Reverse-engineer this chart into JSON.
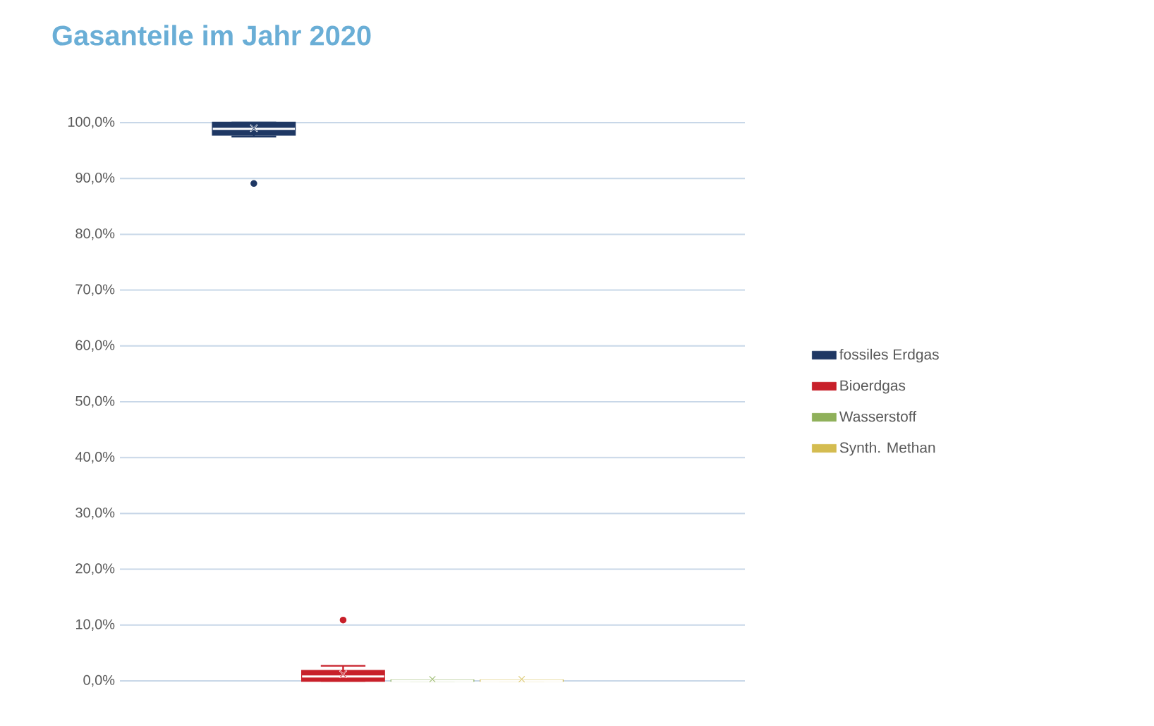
{
  "chart_data": {
    "type": "box",
    "title": "Gasanteile im Jahr 2020",
    "categories": [
      null
    ],
    "series": [
      {
        "name": "fossiles Erdgas",
        "color": "#1f3864",
        "boxes": [
          {
            "low": 97.5,
            "q1": 97.8,
            "median": 98.9,
            "q3": 100,
            "high": 100,
            "mean": 99,
            "outliers": [
              89.1
            ]
          }
        ]
      },
      {
        "name": "Bioerdgas",
        "color": "#c8202a",
        "boxes": [
          {
            "low": 0,
            "q1": 0,
            "median": 0.8,
            "q3": 1.8,
            "high": 2.7,
            "mean": 1.2,
            "outliers": [
              10.9
            ]
          }
        ]
      },
      {
        "name": "Wasserstoff",
        "color": "#8fb05a",
        "boxes": [
          {
            "low": 0,
            "q1": 0,
            "median": 0,
            "q3": 0.1,
            "high": 0.1,
            "mean": 0.3
          }
        ]
      },
      {
        "name": "Synth. Methan",
        "color": "#d4bc50",
        "boxes": [
          {
            "low": 0,
            "q1": 0,
            "median": 0,
            "q3": 0.1,
            "high": 0.1,
            "mean": 0.3
          }
        ]
      }
    ],
    "ylim": [
      0,
      100
    ],
    "yticks": [
      {
        "value": 0,
        "label": "0,0%"
      },
      {
        "value": 10,
        "label": "10,0%"
      },
      {
        "value": 20,
        "label": "20,0%"
      },
      {
        "value": 30,
        "label": "30,0%"
      },
      {
        "value": 40,
        "label": "40,0%"
      },
      {
        "value": 50,
        "label": "50,0%"
      },
      {
        "value": 60,
        "label": "60,0%"
      },
      {
        "value": 70,
        "label": "70,0%"
      },
      {
        "value": 80,
        "label": "80,0%"
      },
      {
        "value": 90,
        "label": "90,0%"
      },
      {
        "value": 100,
        "label": "100,0%"
      }
    ],
    "grid": "y",
    "legend": "right",
    "tick_labels": "y"
  }
}
